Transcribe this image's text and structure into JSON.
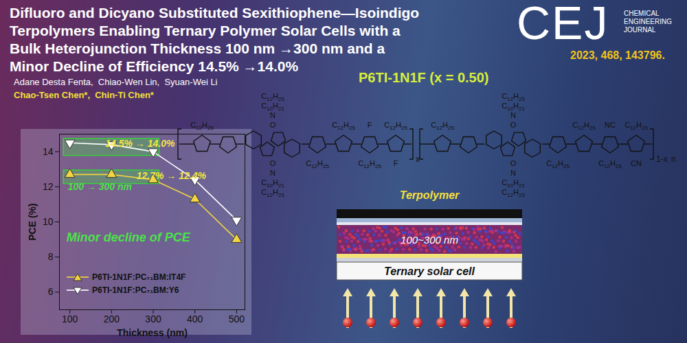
{
  "header": {
    "title_lines": [
      "Difluoro and Dicyano Substituted Sexithiophene—Isoindigo",
      "Terpolymers Enabling Ternary Polymer Solar Cells with a",
      "Bulk Heterojunction Thickness 100 nm →300 nm and a",
      "Minor Decline of Efficiency 14.5% →14.0%"
    ],
    "authors": "Adane Desta Fenta,  Chiao-Wen Lin,  Syuan-Wei Li",
    "corresponding_authors": "Chao-Tsen Chen*,  Chin-Ti Chen*"
  },
  "journal": {
    "logo": "CEJ",
    "name_lines": [
      "CHEMICAL",
      "ENGINEERING",
      "JOURNAL"
    ],
    "citation": "2023, 468, 143796."
  },
  "chart_data": {
    "type": "line",
    "x": [
      100,
      200,
      300,
      400,
      500
    ],
    "series": [
      {
        "name": "P6TI-1N1F:PC₇₁BM:IT4F",
        "color": "#f2d541",
        "marker": "triangle",
        "values": [
          12.7,
          12.7,
          12.4,
          11.3,
          9.0
        ]
      },
      {
        "name": "P6TI-1N1F:PC₇₁BM:Y6",
        "color": "#ffffff",
        "marker": "triangle-down",
        "values": [
          14.5,
          14.4,
          14.0,
          12.4,
          10.1
        ]
      }
    ],
    "xlim": [
      75,
      520
    ],
    "ylim": [
      5,
      15
    ],
    "xticks": [
      100,
      200,
      300,
      400,
      500
    ],
    "yticks": [
      6,
      8,
      10,
      12,
      14
    ],
    "x_label": "Thickness (nm)",
    "y_label": "PCE (%)",
    "legend": "lower left",
    "annotations": [
      {
        "text": "14.5% → 14.0%",
        "x": 185,
        "y": 14.45,
        "color": "#f4e542"
      },
      {
        "text": "12.7% → 12.4%",
        "x": 260,
        "y": 12.6,
        "color": "#f4e542"
      },
      {
        "text": "100 → 300 nm",
        "x": 95,
        "y": 12.0,
        "color": "#4de24a"
      },
      {
        "text": "Minor decline of PCE",
        "x": 92,
        "y": 9.1,
        "color": "#4de24a"
      }
    ]
  },
  "structure": {
    "title": "P6TI-1N1F (x = 0.50)",
    "parts": [
      {
        "units": [
          {
            "ring": "thiophene",
            "above": [
              "C12H25"
            ],
            "below": []
          },
          {
            "ring": "thiophene",
            "above": [],
            "below": []
          },
          {
            "ring": "isoindigo",
            "above": [
              "O",
              "N",
              "C10H21",
              "C12H25"
            ],
            "below": [
              "O",
              "N",
              "C10H21",
              "C12H25"
            ]
          },
          {
            "ring": "thiophene",
            "above": [],
            "below": [
              "C12H25"
            ]
          },
          {
            "ring": "thiophene",
            "above": [
              "C12H25"
            ],
            "below": []
          },
          {
            "ring": "thiophene",
            "above": [
              "F"
            ],
            "below": [
              "C12H25"
            ]
          },
          {
            "ring": "thiophene",
            "above": [
              "C12H25"
            ],
            "below": [
              "F"
            ]
          }
        ],
        "subscripts": [
          "x"
        ]
      },
      {
        "units": [
          {
            "ring": "thiophene",
            "above": [
              "C12H25"
            ],
            "below": []
          },
          {
            "ring": "thiophene",
            "above": [],
            "below": []
          },
          {
            "ring": "isoindigo",
            "above": [
              "O",
              "N",
              "C10H21",
              "C12H25"
            ],
            "below": [
              "O",
              "N",
              "C10H21",
              "C12H25"
            ]
          },
          {
            "ring": "thiophene",
            "above": [],
            "below": [
              "C12H25"
            ]
          },
          {
            "ring": "thiophene",
            "above": [
              "C12H25"
            ],
            "below": []
          },
          {
            "ring": "thiophene",
            "above": [
              "NC"
            ],
            "below": [
              "C12H25"
            ]
          },
          {
            "ring": "thiophene",
            "above": [
              "C12H25"
            ],
            "below": [
              "CN"
            ]
          }
        ],
        "subscripts": [
          "1-x",
          "n"
        ]
      }
    ]
  },
  "device": {
    "title": "Terpolymer",
    "layer_label": "100~300 nm",
    "caption": "Ternary solar cell"
  }
}
